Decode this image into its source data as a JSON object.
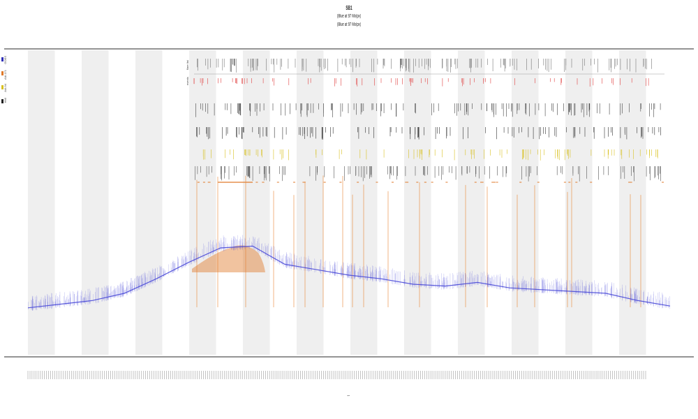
{
  "chart_data": {
    "type": "line",
    "title": "SB1",
    "subtitle_lines": [
      "(Blue at 97 Mx/px)",
      "(Blue at 97 Mx/px)"
    ],
    "xlabel": "t",
    "ylabel": "",
    "grid": false,
    "legend_placement": "top-left",
    "legend": [
      {
        "name": "GOES",
        "color": "#2f2fb8"
      },
      {
        "name": "AIA 171",
        "color": "#e07a2a"
      },
      {
        "name": "AIA 94",
        "color": "#d8c020"
      },
      {
        "name": "HMI",
        "color": "#222222"
      }
    ],
    "track_labels": [
      "flare list",
      "events"
    ],
    "band_count": 12,
    "tick_count": 300,
    "series": [
      {
        "name": "GOES",
        "color": "#4a4ad8",
        "x": [
          0,
          5,
          10,
          15,
          20,
          25,
          30,
          35,
          40,
          45,
          50,
          55,
          60,
          65,
          70,
          75,
          80,
          85,
          90,
          95,
          100
        ],
        "values": [
          0.02,
          0.04,
          0.06,
          0.1,
          0.18,
          0.27,
          0.35,
          0.36,
          0.26,
          0.23,
          0.2,
          0.18,
          0.15,
          0.14,
          0.16,
          0.13,
          0.12,
          0.11,
          0.1,
          0.06,
          0.03
        ]
      }
    ]
  }
}
